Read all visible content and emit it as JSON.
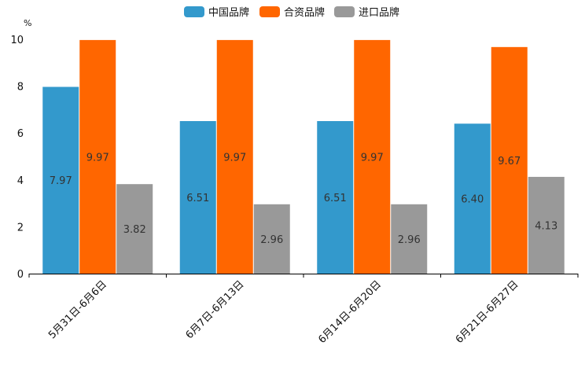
{
  "chart_data": {
    "type": "bar",
    "title": "",
    "xlabel": "",
    "ylabel": "%",
    "ylim": [
      0,
      10
    ],
    "yticks": [
      0,
      2,
      4,
      6,
      8,
      10
    ],
    "grid": false,
    "legend_position": "top-center",
    "categories": [
      "5月31日-6月6日",
      "6月7日-6月13日",
      "6月14日-6月20日",
      "6月21日-6月27日"
    ],
    "series": [
      {
        "name": "中国品牌",
        "color": "#3399cc",
        "values": [
          7.97,
          6.51,
          6.51,
          6.4
        ],
        "labels": [
          "7.97",
          "6.51",
          "6.51",
          "6.40"
        ]
      },
      {
        "name": "合资品牌",
        "color": "#ff6600",
        "values": [
          9.97,
          9.97,
          9.97,
          9.67
        ],
        "labels": [
          "9.97",
          "9.97",
          "9.97",
          "9.67"
        ]
      },
      {
        "name": "进口品牌",
        "color": "#999999",
        "values": [
          3.82,
          2.96,
          2.96,
          4.13
        ],
        "labels": [
          "3.82",
          "2.96",
          "2.96",
          "4.13"
        ]
      }
    ]
  }
}
